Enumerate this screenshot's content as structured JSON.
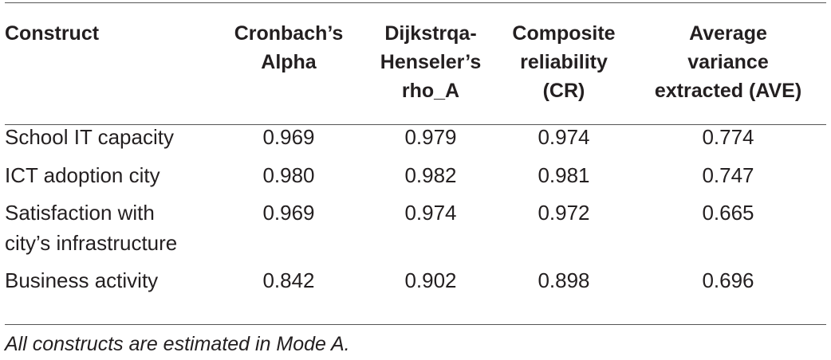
{
  "table": {
    "headers": [
      "Construct",
      "Cronbach’s Alpha",
      "Dijkstrqa-Henseler’s rho_A",
      "Composite reliability (CR)",
      "Average variance extracted (AVE)"
    ],
    "header_lines": [
      [
        "Construct"
      ],
      [
        "Cronbach’s",
        "Alpha"
      ],
      [
        "Dijkstrqa-",
        "Henseler’s",
        "rho_A"
      ],
      [
        "Composite",
        "reliability",
        "(CR)"
      ],
      [
        "Average",
        "variance",
        "extracted (AVE)"
      ]
    ],
    "rows": [
      {
        "construct_lines": [
          "School IT capacity"
        ],
        "alpha": "0.969",
        "rho_a": "0.979",
        "cr": "0.974",
        "ave": "0.774"
      },
      {
        "construct_lines": [
          "ICT adoption city"
        ],
        "alpha": "0.980",
        "rho_a": "0.982",
        "cr": "0.981",
        "ave": "0.747"
      },
      {
        "construct_lines": [
          "Satisfaction with",
          "city’s infrastructure"
        ],
        "alpha": "0.969",
        "rho_a": "0.974",
        "cr": "0.972",
        "ave": "0.665"
      },
      {
        "construct_lines": [
          "Business activity"
        ],
        "alpha": "0.842",
        "rho_a": "0.902",
        "cr": "0.898",
        "ave": "0.696"
      }
    ]
  },
  "footnote": "All constructs are estimated in Mode A."
}
